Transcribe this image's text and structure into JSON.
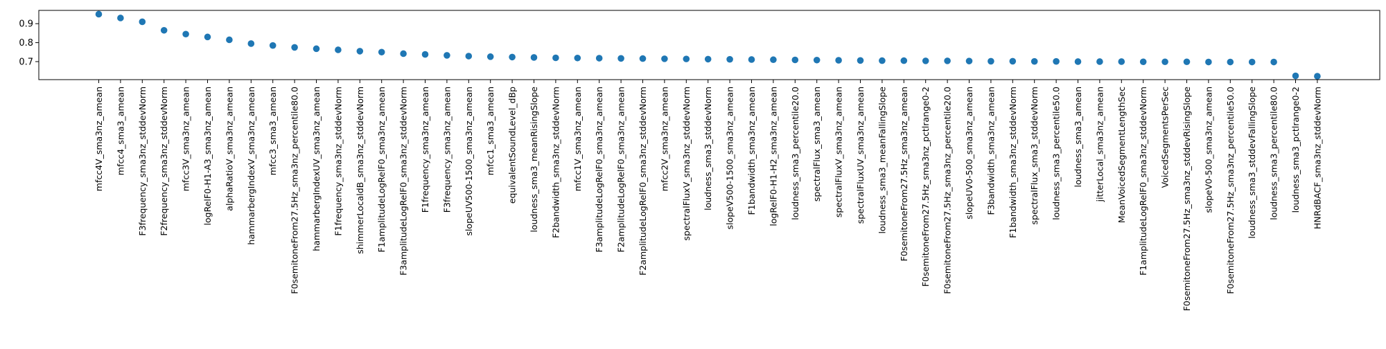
{
  "chart_data": {
    "type": "scatter",
    "title": "",
    "xlabel": "",
    "ylabel": "",
    "ylim": [
      0.605,
      0.97
    ],
    "grid": false,
    "legend": "none",
    "marker_color": "#1f77b4",
    "y_ticks": [
      {
        "value": 0.7,
        "label": "0.7"
      },
      {
        "value": 0.8,
        "label": "0.8"
      },
      {
        "value": 0.9,
        "label": "0.9"
      }
    ],
    "categories": [
      "mfcc4V_sma3nz_amean",
      "mfcc4_sma3_amean",
      "F3frequency_sma3nz_stddevNorm",
      "F2frequency_sma3nz_stddevNorm",
      "mfcc3V_sma3nz_amean",
      "logRelF0-H1-A3_sma3nz_amean",
      "alphaRatioV_sma3nz_amean",
      "hammarbergIndexV_sma3nz_amean",
      "mfcc3_sma3_amean",
      "F0semitoneFrom27.5Hz_sma3nz_percentile80.0",
      "hammarbergIndexUV_sma3nz_amean",
      "F1frequency_sma3nz_stddevNorm",
      "shimmerLocaldB_sma3nz_stddevNorm",
      "F1amplitudeLogRelF0_sma3nz_amean",
      "F3amplitudeLogRelF0_sma3nz_stddevNorm",
      "F1frequency_sma3nz_amean",
      "F3frequency_sma3nz_amean",
      "slopeUV500-1500_sma3nz_amean",
      "mfcc1_sma3_amean",
      "equivalentSoundLevel_dBp",
      "loudness_sma3_meanRisingSlope",
      "F2bandwidth_sma3nz_stddevNorm",
      "mfcc1V_sma3nz_amean",
      "F3amplitudeLogRelF0_sma3nz_amean",
      "F2amplitudeLogRelF0_sma3nz_amean",
      "F2amplitudeLogRelF0_sma3nz_stddevNorm",
      "mfcc2V_sma3nz_amean",
      "spectralFluxV_sma3nz_stddevNorm",
      "loudness_sma3_stddevNorm",
      "slopeV500-1500_sma3nz_amean",
      "F1bandwidth_sma3nz_amean",
      "logRelF0-H1-H2_sma3nz_amean",
      "loudness_sma3_percentile20.0",
      "spectralFlux_sma3_amean",
      "spectralFluxV_sma3nz_amean",
      "spectralFluxUV_sma3nz_amean",
      "loudness_sma3_meanFallingSlope",
      "F0semitoneFrom27.5Hz_sma3nz_amean",
      "F0semitoneFrom27.5Hz_sma3nz_pctlrange0-2",
      "F0semitoneFrom27.5Hz_sma3nz_percentile20.0",
      "slopeUV0-500_sma3nz_amean",
      "F3bandwidth_sma3nz_amean",
      "F1bandwidth_sma3nz_stddevNorm",
      "spectralFlux_sma3_stddevNorm",
      "loudness_sma3_percentile50.0",
      "loudness_sma3_amean",
      "jitterLocal_sma3nz_amean",
      "MeanVoicedSegmentLengthSec",
      "F1amplitudeLogRelF0_sma3nz_stddevNorm",
      "VoicedSegmentsPerSec",
      "F0semitoneFrom27.5Hz_sma3nz_stddevRisingSlope",
      "slopeV0-500_sma3nz_amean",
      "F0semitoneFrom27.5Hz_sma3nz_percentile50.0",
      "loudness_sma3_stddevFallingSlope",
      "loudness_sma3_percentile80.0",
      "loudness_sma3_pctlrange0-2",
      "HNRdBACF_sma3nz_stddevNorm"
    ],
    "values": [
      0.95,
      0.93,
      0.91,
      0.865,
      0.845,
      0.83,
      0.815,
      0.795,
      0.785,
      0.775,
      0.768,
      0.762,
      0.755,
      0.75,
      0.742,
      0.738,
      0.733,
      0.729,
      0.726,
      0.724,
      0.722,
      0.72,
      0.719,
      0.718,
      0.717,
      0.716,
      0.715,
      0.714,
      0.713,
      0.712,
      0.711,
      0.71,
      0.709,
      0.708,
      0.707,
      0.706,
      0.705,
      0.705,
      0.704,
      0.704,
      0.703,
      0.702,
      0.702,
      0.701,
      0.701,
      0.7,
      0.7,
      0.7,
      0.699,
      0.699,
      0.699,
      0.698,
      0.698,
      0.698,
      0.698,
      0.625,
      0.623
    ]
  }
}
